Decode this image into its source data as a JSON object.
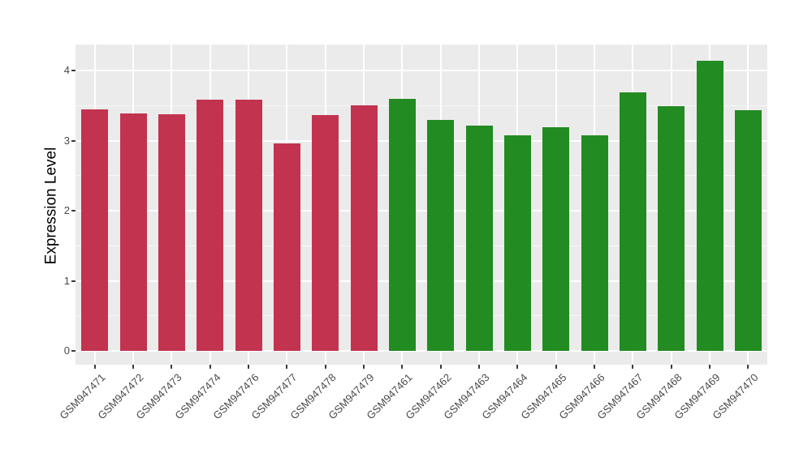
{
  "chart_data": {
    "type": "bar",
    "title": "",
    "xlabel": "",
    "ylabel": "Expression Level",
    "ylim": [
      0,
      4.4
    ],
    "yticks": [
      0,
      1,
      2,
      3,
      4
    ],
    "yticks_minor": [
      0.5,
      1.5,
      2.5,
      3.5
    ],
    "grid": "white major/minor horizontal gridlines and white vertical category gridlines on gray panel",
    "legend_position": "none",
    "categories": [
      "GSM947471",
      "GSM947472",
      "GSM947473",
      "GSM947474",
      "GSM947476",
      "GSM947477",
      "GSM947478",
      "GSM947479",
      "GSM947461",
      "GSM947462",
      "GSM947463",
      "GSM947464",
      "GSM947465",
      "GSM947466",
      "GSM947467",
      "GSM947468",
      "GSM947469",
      "GSM947470"
    ],
    "values": [
      3.45,
      3.39,
      3.37,
      3.58,
      3.58,
      2.96,
      3.36,
      3.5,
      3.6,
      3.3,
      3.21,
      3.08,
      3.19,
      3.08,
      3.69,
      3.49,
      4.14,
      3.43
    ],
    "bar_groups": [
      "red",
      "red",
      "red",
      "red",
      "red",
      "red",
      "red",
      "red",
      "green",
      "green",
      "green",
      "green",
      "green",
      "green",
      "green",
      "green",
      "green",
      "green"
    ]
  },
  "colors": {
    "red_bar": "#C2334F",
    "green_bar": "#228B22",
    "panel_background": "#EBEBEB",
    "outer_background": "#FFFFFF",
    "gridline": "#FFFFFF",
    "tick_text": "#4A4A4A",
    "axis_title_text": "#000000"
  }
}
